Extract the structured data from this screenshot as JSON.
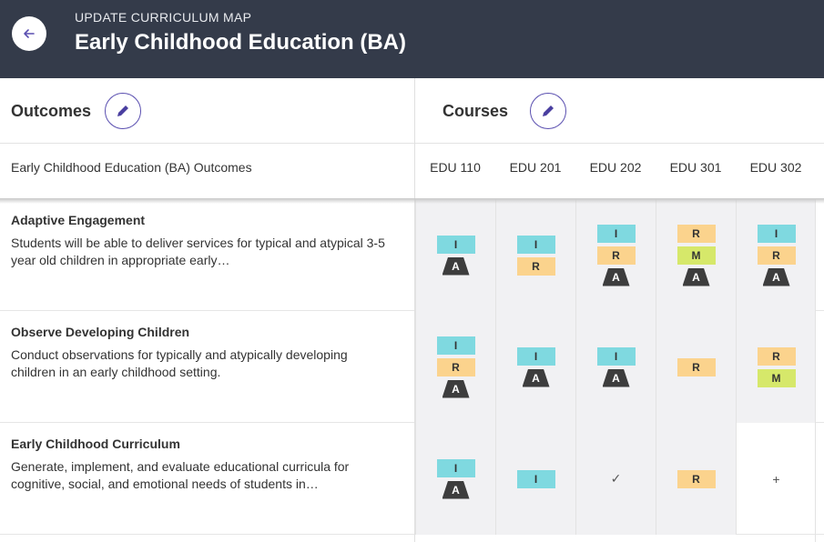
{
  "header": {
    "eyebrow": "UPDATE CURRICULUM MAP",
    "title": "Early Childhood Education (BA)"
  },
  "sections": {
    "outcomes_label": "Outcomes",
    "courses_label": "Courses"
  },
  "columns": {
    "outcomes_title": "Early Childhood Education (BA) Outcomes",
    "courses": [
      "EDU 110",
      "EDU 201",
      "EDU 202",
      "EDU 301",
      "EDU 302"
    ]
  },
  "rows": [
    {
      "title": "Adaptive Engagement",
      "description": "Students will be able to deliver services for typical and atypical 3-5 year old children in appropriate early…",
      "cells": [
        [
          "I",
          "A"
        ],
        [
          "I",
          "R"
        ],
        [
          "I",
          "R",
          "A"
        ],
        [
          "R",
          "M",
          "A"
        ],
        [
          "I",
          "R",
          "A"
        ]
      ]
    },
    {
      "title": "Observe Developing Children",
      "description": "Conduct observations for typically and atypically developing children in an early childhood setting.",
      "cells": [
        [
          "I",
          "R",
          "A"
        ],
        [
          "I",
          "A"
        ],
        [
          "I",
          "A"
        ],
        [
          "R"
        ],
        [
          "R",
          "M"
        ]
      ]
    },
    {
      "title": "Early Childhood Curriculum",
      "description": "Generate, implement, and evaluate educational curricula for cognitive, social, and emotional needs of students in…",
      "cells": [
        [
          "I",
          "A"
        ],
        [
          "I"
        ],
        [
          "✓"
        ],
        [
          "R"
        ],
        [
          "+"
        ]
      ]
    }
  ],
  "icons": {
    "back": "arrow-left-icon",
    "edit": "pencil-icon"
  },
  "colors": {
    "header_bg": "#343b4a",
    "tag_I": "#7fd9e0",
    "tag_R": "#fbd38d",
    "tag_M": "#d6e86a",
    "tag_A": "#3d3d3d",
    "accent": "#5a4fb0"
  }
}
